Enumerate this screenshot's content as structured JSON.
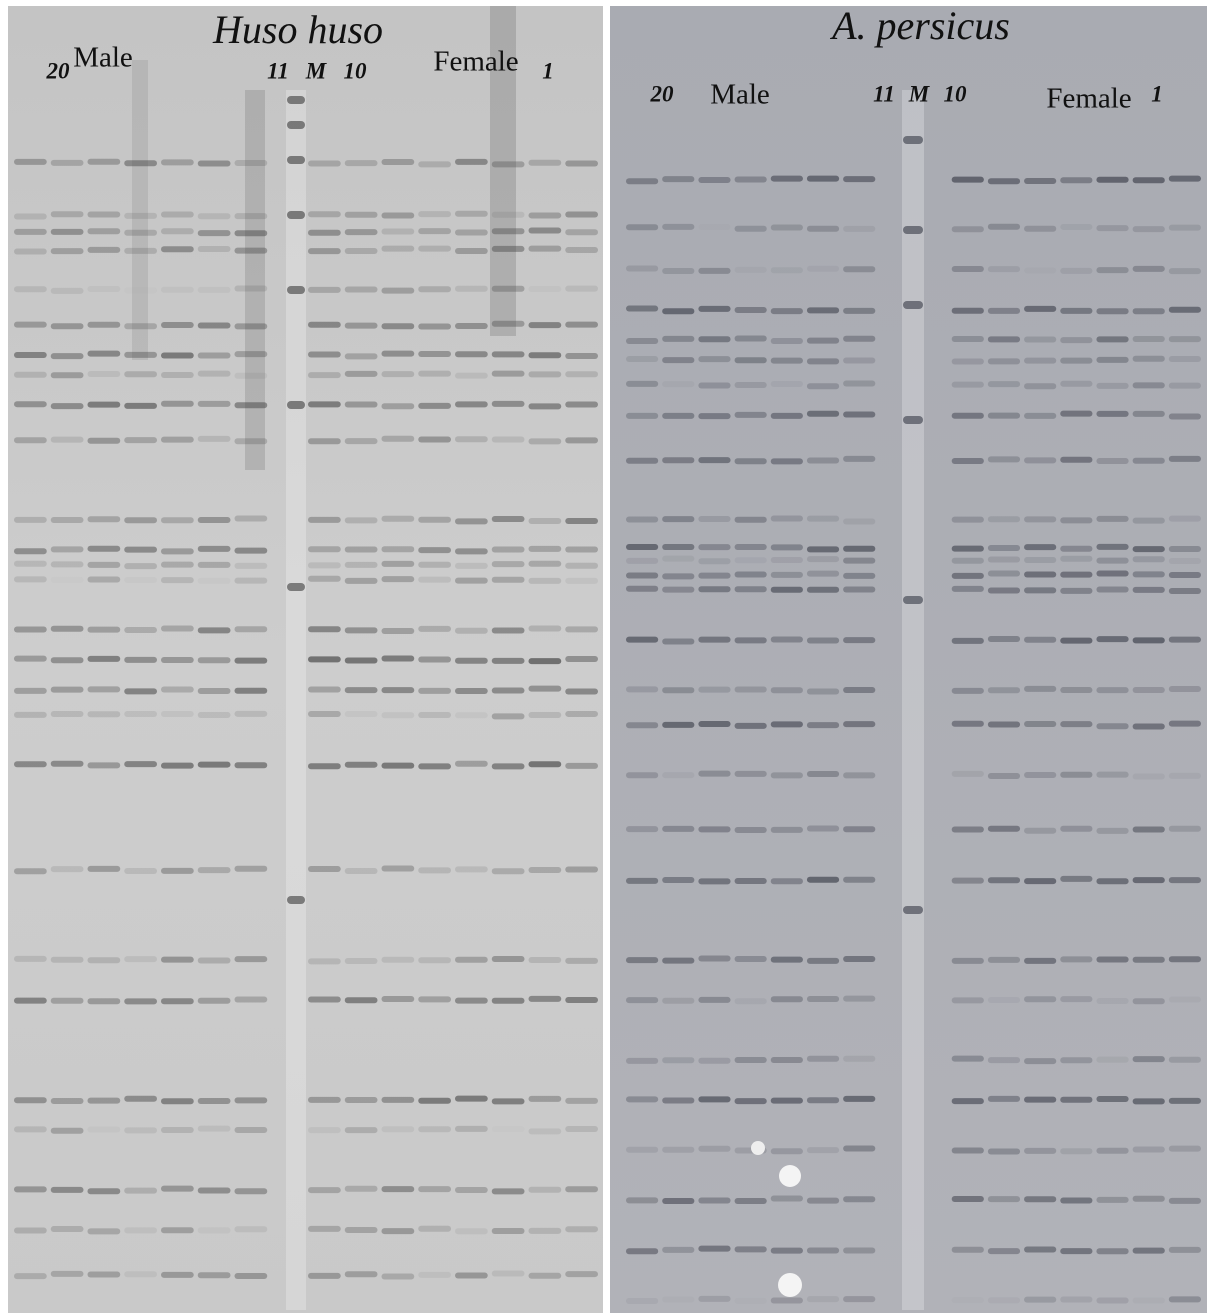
{
  "panels": [
    {
      "title": "Huso huso",
      "labels": [
        "20",
        "Male",
        "11",
        "M",
        "10",
        "Female",
        "1"
      ]
    },
    {
      "title": "A. persicus",
      "labels": [
        "20",
        "Male",
        "11",
        "M",
        "10",
        "Female",
        "1"
      ]
    }
  ]
}
